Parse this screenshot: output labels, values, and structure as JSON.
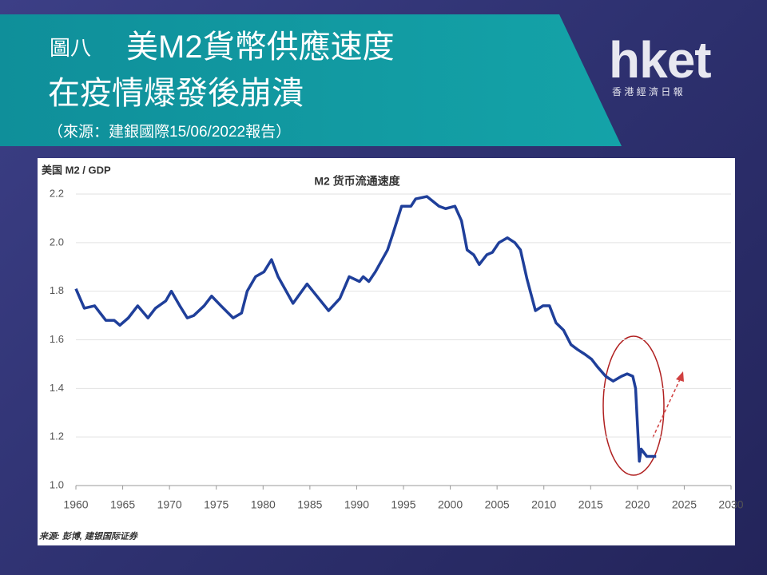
{
  "header": {
    "figure_no": "圖八",
    "title_line1": "美M2貨幣供應速度",
    "title_line2": "在疫情爆發後崩潰",
    "source": "（來源：建銀國際15/06/2022報告）"
  },
  "logo": {
    "name": "hket",
    "subtitle": "香 港 經 濟 日 報"
  },
  "chart_data": {
    "type": "line",
    "title": "M2 货币流通速度",
    "y_label": "美国 M2 / GDP",
    "source": "来源: 彭博, 建银国际证券",
    "x": [
      1960,
      1960.9,
      1962,
      1963.2,
      1964.1,
      1964.7,
      1965.6,
      1966.6,
      1967.7,
      1968.5,
      1969.6,
      1970.2,
      1971.1,
      1971.9,
      1972.6,
      1973.7,
      1974.5,
      1975.5,
      1976.8,
      1977.7,
      1978.3,
      1979.2,
      1980.1,
      1980.9,
      1981.6,
      1983.2,
      1984.7,
      1987,
      1988.2,
      1989.2,
      1990.3,
      1990.7,
      1991.3,
      1992,
      1993.3,
      1993.9,
      1994.8,
      1995.8,
      1996.3,
      1997.5,
      1998.8,
      1999.5,
      2000.5,
      2001.2,
      2001.8,
      2002.5,
      2003.1,
      2003.9,
      2004.5,
      2005.2,
      2006.1,
      2006.9,
      2007.5,
      2008.2,
      2009.1,
      2009.9,
      2010.6,
      2011.3,
      2012.1,
      2012.9,
      2013.6,
      2014.4,
      2015.1,
      2015.7,
      2016.6,
      2017.4,
      2018.3,
      2018.9,
      2019.5,
      2019.8,
      2020.2,
      2020.4,
      2021,
      2021.7,
      2022
    ],
    "series": [
      {
        "name": "M2 货币流通速度",
        "color": "#1f3f9a",
        "values": [
          1.81,
          1.73,
          1.74,
          1.68,
          1.68,
          1.66,
          1.69,
          1.74,
          1.69,
          1.73,
          1.76,
          1.8,
          1.74,
          1.69,
          1.7,
          1.74,
          1.78,
          1.74,
          1.69,
          1.71,
          1.8,
          1.86,
          1.88,
          1.93,
          1.86,
          1.75,
          1.83,
          1.72,
          1.77,
          1.86,
          1.84,
          1.86,
          1.84,
          1.88,
          1.97,
          2.04,
          2.15,
          2.15,
          2.18,
          2.19,
          2.15,
          2.14,
          2.15,
          2.09,
          1.97,
          1.95,
          1.91,
          1.95,
          1.96,
          2.0,
          2.02,
          2.0,
          1.97,
          1.85,
          1.72,
          1.74,
          1.74,
          1.67,
          1.64,
          1.58,
          1.56,
          1.54,
          1.52,
          1.49,
          1.45,
          1.43,
          1.45,
          1.46,
          1.45,
          1.4,
          1.1,
          1.15,
          1.12,
          1.12,
          1.12
        ]
      }
    ],
    "xlim": [
      1960,
      2030
    ],
    "xticks": [
      1960,
      1965,
      1970,
      1975,
      1980,
      1985,
      1990,
      1995,
      2000,
      2005,
      2010,
      2015,
      2020,
      2025,
      2030
    ],
    "ylim": [
      1.0,
      2.2
    ],
    "yticks": [
      {
        "value": 1.0,
        "label": "1.0"
      },
      1.2,
      1.4,
      1.6,
      1.8,
      {
        "value": 2.0,
        "label": "2.0"
      },
      2.2
    ],
    "grid": true
  }
}
